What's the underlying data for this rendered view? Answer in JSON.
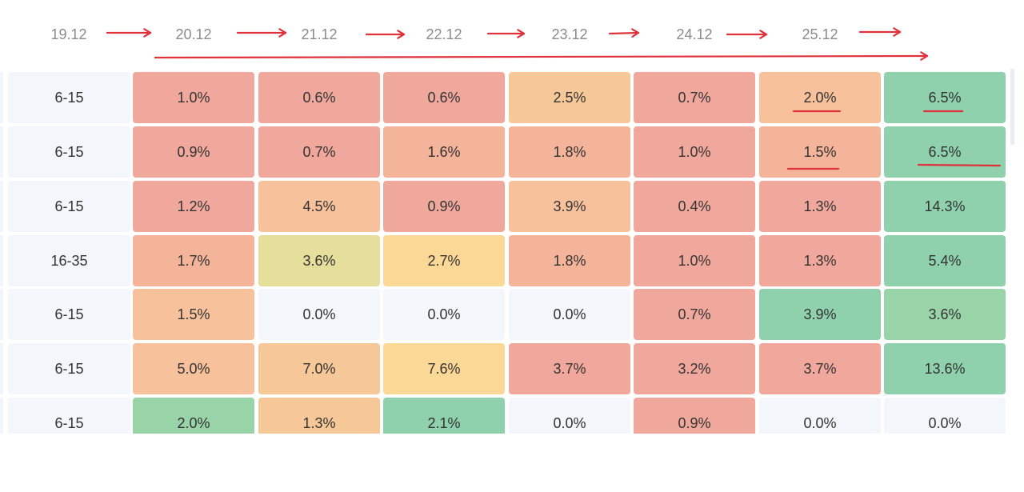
{
  "header": {
    "dates": [
      "19.12",
      "20.12",
      "21.12",
      "22.12",
      "23.12",
      "24.12",
      "25.12"
    ]
  },
  "colors": {
    "red": "#f1a89c",
    "salmon": "#f3b49a",
    "peach": "#f7c19c",
    "orange": "#f7c897",
    "yellow": "#fbd896",
    "olive": "#e6de9b",
    "green": "#8fd1ac",
    "lightgreen": "#98d4a8",
    "empty": "#f3f6fb",
    "annotation": "#e0323c"
  },
  "table": {
    "rows": [
      {
        "label": "6-15",
        "cells": [
          {
            "v": "1.0%",
            "c": "red"
          },
          {
            "v": "0.6%",
            "c": "red"
          },
          {
            "v": "0.6%",
            "c": "red"
          },
          {
            "v": "2.5%",
            "c": "orange"
          },
          {
            "v": "0.7%",
            "c": "red"
          },
          {
            "v": "2.0%",
            "c": "peach"
          },
          {
            "v": "6.5%",
            "c": "green"
          }
        ]
      },
      {
        "label": "6-15",
        "cells": [
          {
            "v": "0.9%",
            "c": "red"
          },
          {
            "v": "0.7%",
            "c": "red"
          },
          {
            "v": "1.6%",
            "c": "salmon"
          },
          {
            "v": "1.8%",
            "c": "salmon"
          },
          {
            "v": "1.0%",
            "c": "red"
          },
          {
            "v": "1.5%",
            "c": "salmon"
          },
          {
            "v": "6.5%",
            "c": "green"
          }
        ]
      },
      {
        "label": "6-15",
        "cells": [
          {
            "v": "1.2%",
            "c": "red"
          },
          {
            "v": "4.5%",
            "c": "peach"
          },
          {
            "v": "0.9%",
            "c": "red"
          },
          {
            "v": "3.9%",
            "c": "peach"
          },
          {
            "v": "0.4%",
            "c": "red"
          },
          {
            "v": "1.3%",
            "c": "red"
          },
          {
            "v": "14.3%",
            "c": "green"
          }
        ]
      },
      {
        "label": "16-35",
        "cells": [
          {
            "v": "1.7%",
            "c": "salmon"
          },
          {
            "v": "3.6%",
            "c": "olive"
          },
          {
            "v": "2.7%",
            "c": "yellow"
          },
          {
            "v": "1.8%",
            "c": "salmon"
          },
          {
            "v": "1.0%",
            "c": "red"
          },
          {
            "v": "1.3%",
            "c": "red"
          },
          {
            "v": "5.4%",
            "c": "green"
          }
        ]
      },
      {
        "label": "6-15",
        "cells": [
          {
            "v": "1.5%",
            "c": "peach"
          },
          {
            "v": "0.0%",
            "c": "empty"
          },
          {
            "v": "0.0%",
            "c": "empty"
          },
          {
            "v": "0.0%",
            "c": "empty"
          },
          {
            "v": "0.7%",
            "c": "red"
          },
          {
            "v": "3.9%",
            "c": "green"
          },
          {
            "v": "3.6%",
            "c": "lightgreen"
          }
        ]
      },
      {
        "label": "6-15",
        "cells": [
          {
            "v": "5.0%",
            "c": "peach"
          },
          {
            "v": "7.0%",
            "c": "orange"
          },
          {
            "v": "7.6%",
            "c": "yellow"
          },
          {
            "v": "3.7%",
            "c": "red"
          },
          {
            "v": "3.2%",
            "c": "red"
          },
          {
            "v": "3.7%",
            "c": "red"
          },
          {
            "v": "13.6%",
            "c": "green"
          }
        ]
      },
      {
        "label": "6-15",
        "cells": [
          {
            "v": "2.0%",
            "c": "lightgreen"
          },
          {
            "v": "1.3%",
            "c": "orange"
          },
          {
            "v": "2.1%",
            "c": "green"
          },
          {
            "v": "0.0%",
            "c": "empty"
          },
          {
            "v": "0.9%",
            "c": "red"
          },
          {
            "v": "0.0%",
            "c": "empty"
          },
          {
            "v": "0.0%",
            "c": "empty"
          }
        ]
      }
    ]
  }
}
